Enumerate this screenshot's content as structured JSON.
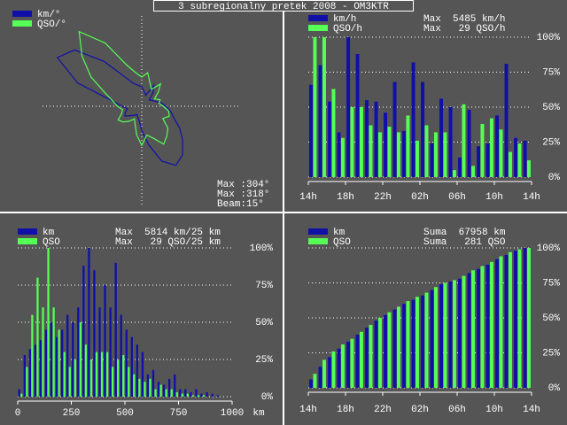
{
  "window_title": "3 subregionalny pretek 2008 - OM3KTR",
  "chart_data": [
    {
      "type": "polar",
      "theta": [
        0,
        10,
        20,
        30,
        40,
        50,
        60,
        70,
        80,
        90,
        100,
        110,
        120,
        130,
        140,
        150,
        160,
        170,
        180,
        190,
        200,
        210,
        220,
        230,
        240,
        250,
        260,
        270,
        280,
        290,
        300,
        310,
        320,
        330,
        340,
        350
      ],
      "rlim": [
        0,
        100
      ],
      "series": [
        {
          "name": "km/°",
          "color": "#1010a8",
          "values": [
            20,
            15,
            12,
            25,
            18,
            10,
            12,
            15,
            20,
            25,
            30,
            35,
            45,
            55,
            65,
            70,
            60,
            40,
            25,
            15,
            12,
            10,
            12,
            15,
            20,
            18,
            15,
            20,
            30,
            70,
            100,
            90,
            60,
            35,
            25,
            22
          ]
        },
        {
          "name": "QSO/°",
          "color": "#55ff55",
          "values": [
            30,
            35,
            25,
            20,
            30,
            22,
            15,
            20,
            18,
            22,
            28,
            30,
            25,
            35,
            40,
            45,
            35,
            30,
            40,
            30,
            20,
            15,
            20,
            25,
            28,
            22,
            20,
            25,
            30,
            40,
            60,
            80,
            100,
            75,
            45,
            35
          ]
        }
      ],
      "annotations": [
        {
          "text": "Max :304°",
          "color": "#2020c8"
        },
        {
          "text": "Max :318°",
          "color": "#55ff55"
        },
        {
          "text": "Beam:15°",
          "color": "#ffffff"
        }
      ]
    },
    {
      "type": "bar",
      "x": [
        0,
        1,
        2,
        3,
        4,
        5,
        6,
        7,
        8,
        9,
        10,
        11,
        12,
        13,
        14,
        15,
        16,
        17,
        18,
        19,
        20,
        21,
        22,
        23
      ],
      "xlim": [
        0,
        24
      ],
      "xticks": [
        {
          "value": 0,
          "label": "14h"
        },
        {
          "value": 4,
          "label": "18h"
        },
        {
          "value": 8,
          "label": "22h"
        },
        {
          "value": 12,
          "label": "02h"
        },
        {
          "value": 16,
          "label": "06h"
        },
        {
          "value": 20,
          "label": "10h"
        },
        {
          "value": 24,
          "label": "14h"
        }
      ],
      "ylim": [
        0,
        100
      ],
      "yticks": [
        {
          "value": 0,
          "label": "0%"
        },
        {
          "value": 25,
          "label": "25%"
        },
        {
          "value": 50,
          "label": "50%"
        },
        {
          "value": 75,
          "label": "75%"
        },
        {
          "value": 100,
          "label": "100%"
        }
      ],
      "grid": true,
      "series": [
        {
          "name": "km/h",
          "color": "#1010a8",
          "annotation": "Max  5485 km/h",
          "values": [
            66,
            80,
            54,
            32,
            100,
            88,
            55,
            54,
            46,
            68,
            33,
            82,
            68,
            24,
            56,
            50,
            14,
            48,
            22,
            24,
            44,
            81,
            28,
            26
          ]
        },
        {
          "name": "QSO/h",
          "color": "#55ff55",
          "annotation": "Max   29 QSO/h",
          "values": [
            100,
            100,
            63,
            28,
            50,
            50,
            37,
            32,
            36,
            32,
            44,
            26,
            37,
            32,
            32,
            5,
            52,
            8,
            38,
            42,
            34,
            18,
            24,
            12
          ]
        }
      ]
    },
    {
      "type": "histogram",
      "bins": [
        0,
        25,
        50,
        75,
        100,
        125,
        150,
        175,
        200,
        225,
        250,
        275,
        300,
        325,
        350,
        375,
        400,
        425,
        450,
        475,
        500,
        525,
        550,
        575,
        600,
        625,
        650,
        675,
        700,
        725,
        750,
        775,
        800,
        825,
        850,
        875,
        900,
        925,
        950,
        975,
        1000
      ],
      "xlim": [
        0,
        1000
      ],
      "xticks": [
        0,
        250,
        500,
        750,
        1000
      ],
      "xlabel": "km",
      "ylim": [
        0,
        100
      ],
      "yticks": [
        {
          "value": 0,
          "label": "0%"
        },
        {
          "value": 25,
          "label": "25%"
        },
        {
          "value": 50,
          "label": "50%"
        },
        {
          "value": 75,
          "label": "75%"
        },
        {
          "value": 100,
          "label": "100%"
        }
      ],
      "grid": true,
      "series": [
        {
          "name": "km",
          "color": "#1010a8",
          "annotation": "Max  5814 km/25 km",
          "values": [
            5,
            28,
            32,
            35,
            38,
            45,
            50,
            40,
            45,
            55,
            50,
            60,
            88,
            100,
            85,
            60,
            75,
            60,
            90,
            55,
            45,
            40,
            35,
            30,
            15,
            18,
            10,
            8,
            12,
            15,
            5,
            5,
            3,
            5,
            2,
            3,
            2,
            1,
            0,
            0
          ]
        },
        {
          "name": "QSO",
          "color": "#55ff55",
          "annotation": "Max   29 QSO/25 km",
          "values": [
            2,
            20,
            55,
            80,
            60,
            100,
            60,
            45,
            30,
            20,
            25,
            50,
            35,
            25,
            30,
            30,
            30,
            20,
            25,
            28,
            20,
            15,
            12,
            10,
            12,
            5,
            8,
            5,
            5,
            3,
            2,
            2,
            1,
            1,
            1,
            0,
            0,
            0,
            0,
            0
          ]
        }
      ]
    },
    {
      "type": "bar",
      "x": [
        0,
        1,
        2,
        3,
        4,
        5,
        6,
        7,
        8,
        9,
        10,
        11,
        12,
        13,
        14,
        15,
        16,
        17,
        18,
        19,
        20,
        21,
        22,
        23
      ],
      "xlim": [
        0,
        24
      ],
      "xticks": [
        {
          "value": 0,
          "label": "14h"
        },
        {
          "value": 4,
          "label": "18h"
        },
        {
          "value": 8,
          "label": "22h"
        },
        {
          "value": 12,
          "label": "02h"
        },
        {
          "value": 16,
          "label": "06h"
        },
        {
          "value": 20,
          "label": "10h"
        },
        {
          "value": 24,
          "label": "14h"
        }
      ],
      "ylim": [
        0,
        100
      ],
      "yticks": [
        {
          "value": 0,
          "label": "0%"
        },
        {
          "value": 25,
          "label": "25%"
        },
        {
          "value": 50,
          "label": "50%"
        },
        {
          "value": 75,
          "label": "75%"
        },
        {
          "value": 100,
          "label": "100%"
        }
      ],
      "grid": true,
      "series": [
        {
          "name": "km",
          "color": "#1010a8",
          "annotation": "Suma  67958 km",
          "values": [
            6,
            15,
            22,
            28,
            33,
            38,
            43,
            48,
            52,
            56,
            60,
            63,
            66,
            70,
            74,
            76,
            78,
            82,
            85,
            88,
            92,
            95,
            98,
            100
          ]
        },
        {
          "name": "QSO",
          "color": "#55ff55",
          "annotation": "Suma   281 QSO",
          "values": [
            10,
            20,
            26,
            31,
            35,
            40,
            45,
            50,
            54,
            58,
            62,
            65,
            68,
            72,
            75,
            77,
            80,
            84,
            87,
            90,
            94,
            97,
            99,
            100
          ]
        }
      ]
    }
  ]
}
